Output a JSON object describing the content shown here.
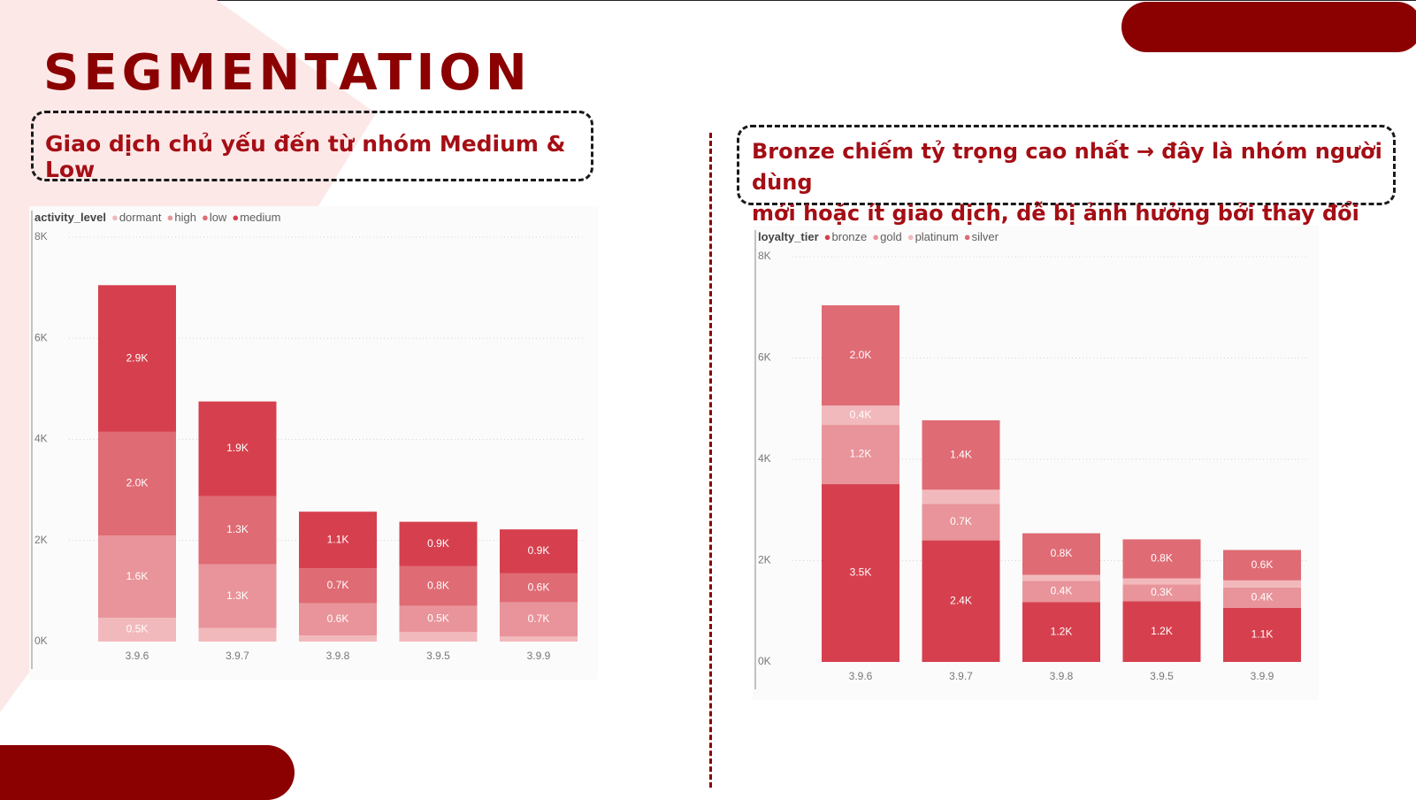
{
  "title": "SEGMENTATION",
  "notes": {
    "left": "Giao dịch chủ yếu đến từ nhóm Medium & Low",
    "right_line1": "Bronze chiếm tỷ trọng cao nhất → đây là nhóm người dùng",
    "right_line2": "mới hoặc ít giao dịch, dễ bị ảnh hưởng bởi thay đổi UI/UX."
  },
  "chart_data": [
    {
      "type": "bar",
      "stacked": true,
      "legend_title": "activity_level",
      "categories": [
        "3.9.6",
        "3.9.7",
        "3.9.8",
        "3.9.5",
        "3.9.9"
      ],
      "series": [
        {
          "name": "dormant",
          "color": "#f2b9bc",
          "values": [
            0.47,
            0.27,
            0.12,
            0.19,
            0.1
          ],
          "labels": [
            "0.5K",
            "",
            "",
            "",
            ""
          ]
        },
        {
          "name": "high",
          "color": "#e8949a",
          "values": [
            1.63,
            1.26,
            0.64,
            0.52,
            0.68
          ],
          "labels": [
            "1.6K",
            "1.3K",
            "0.6K",
            "0.5K",
            "0.7K"
          ]
        },
        {
          "name": "low",
          "color": "#df6b74",
          "values": [
            2.05,
            1.35,
            0.69,
            0.78,
            0.57
          ],
          "labels": [
            "2.0K",
            "1.3K",
            "0.7K",
            "0.8K",
            "0.6K"
          ]
        },
        {
          "name": "medium",
          "color": "#d6404e",
          "values": [
            2.9,
            1.87,
            1.12,
            0.88,
            0.87
          ],
          "labels": [
            "2.9K",
            "1.9K",
            "1.1K",
            "0.9K",
            "0.9K"
          ]
        }
      ],
      "stack_order": [
        "dormant",
        "high",
        "low",
        "medium"
      ],
      "ylim": [
        0,
        8
      ],
      "yticks": [
        {
          "v": 0,
          "label": "0K"
        },
        {
          "v": 2,
          "label": "2K"
        },
        {
          "v": 4,
          "label": "4K"
        },
        {
          "v": 6,
          "label": "6K"
        },
        {
          "v": 8,
          "label": "8K"
        }
      ]
    },
    {
      "type": "bar",
      "stacked": true,
      "legend_title": "loyalty_tier",
      "categories": [
        "3.9.6",
        "3.9.7",
        "3.9.8",
        "3.9.5",
        "3.9.9"
      ],
      "series": [
        {
          "name": "bronze",
          "color": "#d6404e",
          "values": [
            3.51,
            2.4,
            1.18,
            1.2,
            1.07
          ],
          "labels": [
            "3.5K",
            "2.4K",
            "1.2K",
            "1.2K",
            "1.1K"
          ]
        },
        {
          "name": "gold",
          "color": "#e8949a",
          "values": [
            1.17,
            0.72,
            0.42,
            0.33,
            0.4
          ],
          "labels": [
            "1.2K",
            "0.7K",
            "0.4K",
            "0.3K",
            "0.4K"
          ]
        },
        {
          "name": "platinum",
          "color": "#f2b9bc",
          "values": [
            0.38,
            0.28,
            0.12,
            0.12,
            0.14
          ],
          "labels": [
            "0.4K",
            "",
            "",
            "",
            ""
          ]
        },
        {
          "name": "silver",
          "color": "#df6b74",
          "values": [
            1.98,
            1.37,
            0.82,
            0.77,
            0.6
          ],
          "labels": [
            "2.0K",
            "1.4K",
            "0.8K",
            "0.8K",
            "0.6K"
          ]
        }
      ],
      "stack_order": [
        "bronze",
        "gold",
        "platinum",
        "silver"
      ],
      "ylim": [
        0,
        8
      ],
      "yticks": [
        {
          "v": 0,
          "label": "0K"
        },
        {
          "v": 2,
          "label": "2K"
        },
        {
          "v": 4,
          "label": "4K"
        },
        {
          "v": 6,
          "label": "6K"
        },
        {
          "v": 8,
          "label": "8K"
        }
      ]
    }
  ]
}
